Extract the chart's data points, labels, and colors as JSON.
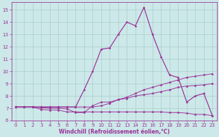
{
  "xlabel": "Windchill (Refroidissement éolien,°C)",
  "background_color": "#cce8e8",
  "grid_color": "#aacccc",
  "line_color": "#993399",
  "xlim": [
    -0.5,
    23.5
  ],
  "ylim": [
    6.0,
    15.6
  ],
  "yticks": [
    6,
    7,
    8,
    9,
    10,
    11,
    12,
    13,
    14,
    15
  ],
  "xticks": [
    0,
    1,
    2,
    3,
    4,
    5,
    6,
    7,
    8,
    9,
    10,
    11,
    12,
    13,
    14,
    15,
    16,
    17,
    18,
    19,
    20,
    21,
    22,
    23
  ],
  "line1_x": [
    0,
    1,
    2,
    3,
    4,
    5,
    6,
    7,
    8,
    9,
    10,
    11,
    12,
    13,
    14,
    15,
    16,
    17,
    18,
    19,
    20,
    21,
    22,
    23
  ],
  "line1_y": [
    7.1,
    7.1,
    7.1,
    7.1,
    7.1,
    7.1,
    7.1,
    7.1,
    8.5,
    10.0,
    11.8,
    11.9,
    13.0,
    14.0,
    13.7,
    15.2,
    13.0,
    11.2,
    9.7,
    9.5,
    7.5,
    8.0,
    8.2,
    6.4
  ],
  "line2_x": [
    0,
    1,
    2,
    3,
    4,
    5,
    6,
    7,
    8,
    9,
    10,
    11,
    12,
    13,
    14,
    15,
    16,
    17,
    18,
    19,
    20,
    21,
    22,
    23
  ],
  "line2_y": [
    7.1,
    7.1,
    7.1,
    7.05,
    7.0,
    7.0,
    6.95,
    6.65,
    6.65,
    7.2,
    7.5,
    7.5,
    7.7,
    7.8,
    8.0,
    8.1,
    8.2,
    8.35,
    8.5,
    8.7,
    8.8,
    8.85,
    8.9,
    9.0
  ],
  "line3_x": [
    0,
    1,
    2,
    3,
    4,
    5,
    6,
    7,
    8,
    9,
    10,
    11,
    12,
    13,
    14,
    15,
    16,
    17,
    18,
    19,
    20,
    21,
    22,
    23
  ],
  "line3_y": [
    7.1,
    7.1,
    7.1,
    6.9,
    6.85,
    6.85,
    6.7,
    6.7,
    6.7,
    6.7,
    6.7,
    6.7,
    6.7,
    6.7,
    6.7,
    6.7,
    6.7,
    6.7,
    6.65,
    6.65,
    6.6,
    6.5,
    6.5,
    6.4
  ],
  "line4_x": [
    0,
    1,
    2,
    3,
    4,
    5,
    6,
    7,
    8,
    9,
    10,
    11,
    12,
    13,
    14,
    15,
    16,
    17,
    18,
    19,
    20,
    21,
    22,
    23
  ],
  "line4_y": [
    7.1,
    7.1,
    7.1,
    7.1,
    7.1,
    7.1,
    7.1,
    7.1,
    7.1,
    7.1,
    7.2,
    7.4,
    7.7,
    7.9,
    8.2,
    8.5,
    8.7,
    8.9,
    9.1,
    9.3,
    9.5,
    9.6,
    9.7,
    9.8
  ],
  "tick_fontsize": 5.0,
  "xlabel_fontsize": 5.5,
  "marker_size": 2.5,
  "linewidth1": 0.9,
  "linewidth2": 0.7
}
